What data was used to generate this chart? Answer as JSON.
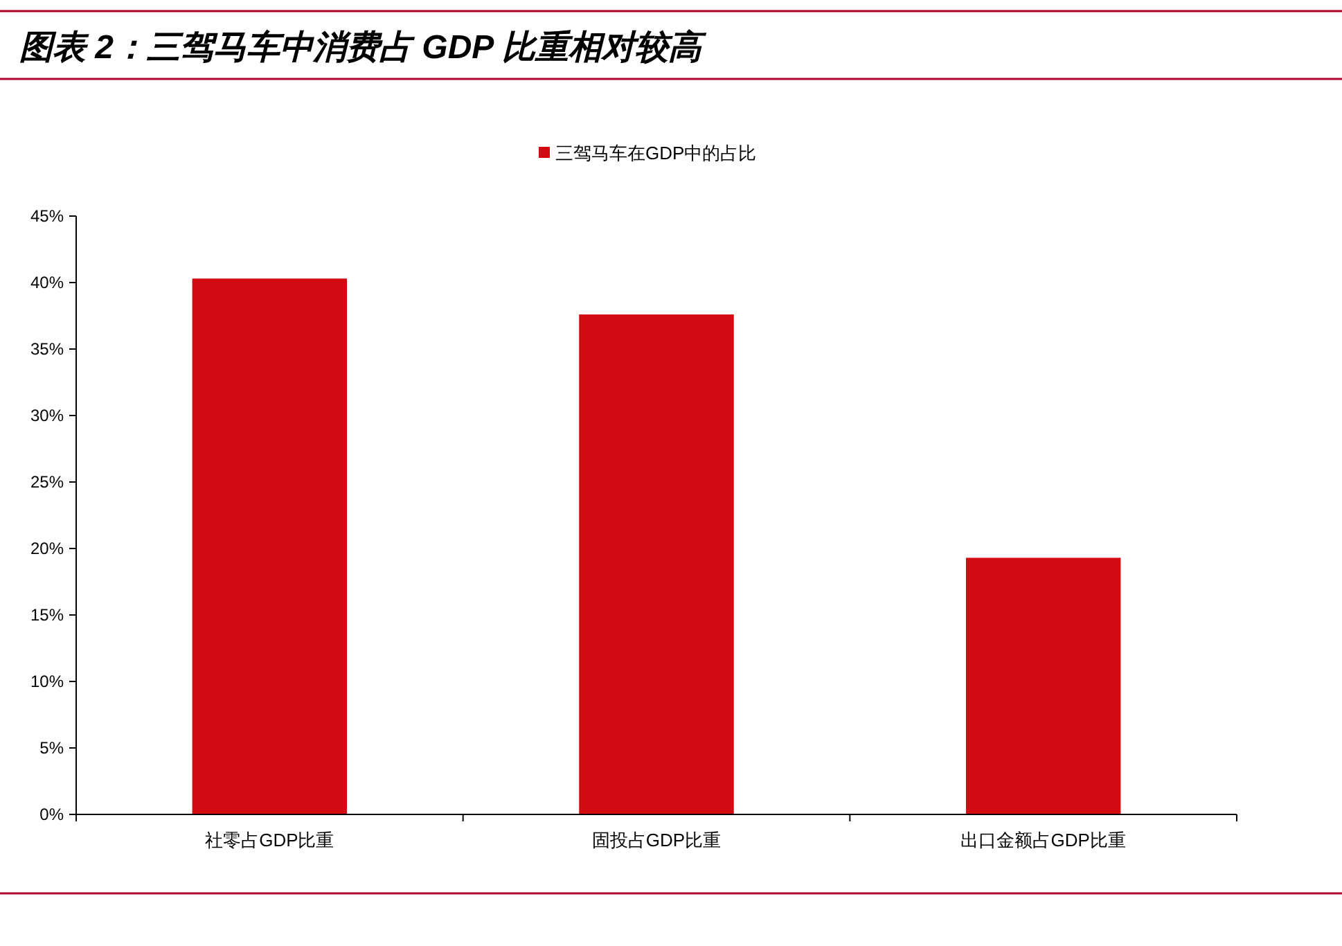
{
  "chart_data": {
    "type": "bar",
    "title": "图表 2：三驾马车中消费占 GDP 比重相对较高",
    "categories": [
      "社零占GDP比重",
      "固投占GDP比重",
      "出口金额占GDP比重"
    ],
    "series": [
      {
        "name": "三驾马车在GDP中的占比",
        "color": "#d20a11",
        "values": [
          40.3,
          37.6,
          19.3
        ]
      }
    ],
    "ylim": [
      0,
      45
    ],
    "yticks": [
      {
        "value": 0,
        "label": "0%"
      },
      {
        "value": 5,
        "label": "5%"
      },
      {
        "value": 10,
        "label": "10%"
      },
      {
        "value": 15,
        "label": "15%"
      },
      {
        "value": 20,
        "label": "20%"
      },
      {
        "value": 25,
        "label": "25%"
      },
      {
        "value": 30,
        "label": "30%"
      },
      {
        "value": 35,
        "label": "35%"
      },
      {
        "value": 40,
        "label": "40%"
      },
      {
        "value": 45,
        "label": "45%"
      }
    ],
    "grid": false,
    "legend": "top"
  }
}
